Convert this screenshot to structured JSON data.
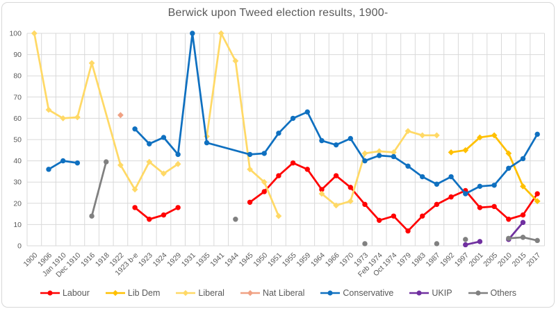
{
  "chart_data": {
    "type": "line",
    "title": "Berwick upon Tweed election results, 1900-",
    "xlabel": "",
    "ylabel": "",
    "ylim": [
      0,
      100
    ],
    "ytick_step": 10,
    "grid": true,
    "legend_position": "bottom",
    "categories": [
      "1900",
      "1906",
      "Jan 1910",
      "Dec 1910",
      "1916",
      "1918",
      "1922",
      "1923 b-e",
      "1923",
      "1924",
      "1929",
      "1931",
      "1935",
      "1941",
      "1944",
      "1945",
      "1950",
      "1951",
      "1955",
      "1959",
      "1964",
      "1966",
      "1970",
      "1973",
      "Feb 1974",
      "Oct 1974",
      "1979",
      "1983",
      "1987",
      "1992",
      "1997",
      "2001",
      "2005",
      "2010",
      "2015",
      "2017"
    ],
    "series": [
      {
        "name": "Labour",
        "color": "#ff0000",
        "marker": "circle",
        "segments": [
          [
            [
              "1923 b-e",
              18
            ],
            [
              "1923",
              12.5
            ],
            [
              "1924",
              14.5
            ],
            [
              "1929",
              18
            ]
          ],
          [
            [
              "1945",
              20.5
            ],
            [
              "1950",
              25.5
            ],
            [
              "1951",
              33
            ],
            [
              "1955",
              39
            ],
            [
              "1959",
              36
            ],
            [
              "1964",
              26.5
            ],
            [
              "1966",
              33
            ],
            [
              "1970",
              27.5
            ],
            [
              "1973",
              19.5
            ],
            [
              "Feb 1974",
              12
            ],
            [
              "Oct 1974",
              14
            ],
            [
              "1979",
              7
            ],
            [
              "1983",
              14
            ],
            [
              "1987",
              19.5
            ],
            [
              "1992",
              23
            ],
            [
              "1997",
              26
            ],
            [
              "2001",
              18
            ],
            [
              "2005",
              18.5
            ],
            [
              "2010",
              12.5
            ],
            [
              "2015",
              14.5
            ],
            [
              "2017",
              24.5
            ]
          ]
        ]
      },
      {
        "name": "Lib Dem",
        "color": "#ffc000",
        "marker": "diamond",
        "segments": [
          [
            [
              "1992",
              44
            ],
            [
              "1997",
              45
            ],
            [
              "2001",
              51
            ],
            [
              "2005",
              52
            ],
            [
              "2010",
              43.5
            ],
            [
              "2015",
              28
            ],
            [
              "2017",
              21
            ]
          ]
        ]
      },
      {
        "name": "Liberal",
        "color": "#ffd966",
        "marker": "diamond",
        "segments": [
          [
            [
              "1900",
              100
            ],
            [
              "1906",
              64
            ],
            [
              "Jan 1910",
              60
            ],
            [
              "Dec 1910",
              60.5
            ],
            [
              "1916",
              86
            ],
            [
              "1922",
              38
            ],
            [
              "1923 b-e",
              26.5
            ],
            [
              "1923",
              39.5
            ],
            [
              "1924",
              34
            ],
            [
              "1929",
              38.5
            ]
          ],
          [
            [
              "1935",
              51.5
            ],
            [
              "1941",
              100
            ],
            [
              "1944",
              87
            ],
            [
              "1945",
              36
            ],
            [
              "1950",
              30
            ],
            [
              "1951",
              14
            ]
          ],
          [
            [
              "1964",
              24.5
            ],
            [
              "1966",
              19
            ],
            [
              "1970",
              21
            ],
            [
              "1973",
              43.5
            ],
            [
              "Feb 1974",
              44.5
            ],
            [
              "Oct 1974",
              44
            ],
            [
              "1979",
              54
            ],
            [
              "1983",
              52
            ],
            [
              "1987",
              52
            ]
          ]
        ]
      },
      {
        "name": "Nat Liberal",
        "color": "#f0a183",
        "marker": "diamond",
        "segments": [
          [
            [
              "1922",
              61.5
            ]
          ]
        ]
      },
      {
        "name": "Conservative",
        "color": "#0f70c0",
        "marker": "circle",
        "segments": [
          [
            [
              "1906",
              36
            ],
            [
              "Jan 1910",
              40
            ],
            [
              "Dec 1910",
              39
            ]
          ],
          [
            [
              "1923 b-e",
              55
            ],
            [
              "1923",
              48
            ],
            [
              "1924",
              51
            ],
            [
              "1929",
              43
            ],
            [
              "1931",
              100
            ],
            [
              "1935",
              48.5
            ],
            [
              "1945",
              43
            ],
            [
              "1950",
              43.5
            ],
            [
              "1951",
              53
            ],
            [
              "1955",
              60
            ],
            [
              "1959",
              63
            ],
            [
              "1964",
              49.5
            ],
            [
              "1966",
              47.5
            ],
            [
              "1970",
              50.5
            ],
            [
              "1973",
              40
            ],
            [
              "Feb 1974",
              42.5
            ],
            [
              "Oct 1974",
              42
            ],
            [
              "1979",
              37.5
            ],
            [
              "1983",
              32.5
            ],
            [
              "1987",
              29
            ],
            [
              "1992",
              32.5
            ],
            [
              "1997",
              24.5
            ],
            [
              "2001",
              28
            ],
            [
              "2005",
              28.5
            ],
            [
              "2010",
              36.5
            ],
            [
              "2015",
              41
            ],
            [
              "2017",
              52.5
            ]
          ]
        ]
      },
      {
        "name": "UKIP",
        "color": "#7030a0",
        "marker": "circle",
        "segments": [
          [
            [
              "1997",
              0.5
            ],
            [
              "2001",
              2
            ]
          ],
          [
            [
              "2010",
              3
            ],
            [
              "2015",
              11
            ]
          ]
        ]
      },
      {
        "name": "Others",
        "color": "#808080",
        "marker": "circle",
        "segments": [
          [
            [
              "1916",
              14
            ],
            [
              "1918",
              39.5
            ]
          ],
          [
            [
              "1944",
              12.5
            ]
          ],
          [
            [
              "1973",
              1
            ]
          ],
          [
            [
              "1987",
              1
            ]
          ],
          [
            [
              "1997",
              3
            ]
          ],
          [
            [
              "2010",
              3.5
            ],
            [
              "2015",
              4
            ],
            [
              "2017",
              2.5
            ]
          ]
        ]
      }
    ]
  }
}
